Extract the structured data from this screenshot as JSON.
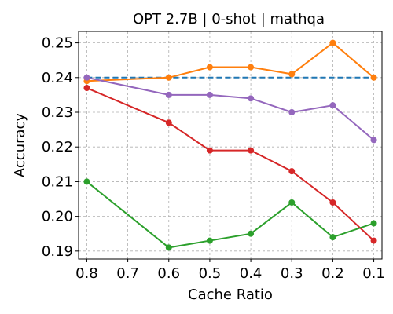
{
  "chart_data": {
    "type": "line",
    "title": "OPT 2.7B | 0-shot | mathqa",
    "xlabel": "Cache Ratio",
    "ylabel": "Accuracy",
    "x": [
      0.8,
      0.6,
      0.5,
      0.4,
      0.3,
      0.2,
      0.1
    ],
    "x_ticks": [
      "0.8",
      "0.7",
      "0.6",
      "0.5",
      "0.4",
      "0.3",
      "0.2",
      "0.1"
    ],
    "x_tick_values": [
      0.8,
      0.7,
      0.6,
      0.5,
      0.4,
      0.3,
      0.2,
      0.1
    ],
    "xlim": [
      0.82,
      0.08
    ],
    "y_ticks": [
      "0.19",
      "0.20",
      "0.21",
      "0.22",
      "0.23",
      "0.24",
      "0.25"
    ],
    "y_tick_values": [
      0.19,
      0.2,
      0.21,
      0.22,
      0.23,
      0.24,
      0.25
    ],
    "ylim": [
      0.1877,
      0.2533
    ],
    "grid": true,
    "baseline": {
      "value": 0.24,
      "color": "#1f77b4",
      "style": "dashed"
    },
    "series": [
      {
        "color": "#ff7f0e",
        "values": [
          0.239,
          0.24,
          0.243,
          0.243,
          0.241,
          0.25,
          0.24
        ]
      },
      {
        "color": "#9467bd",
        "values": [
          0.24,
          0.235,
          0.235,
          0.234,
          0.23,
          0.232,
          0.222
        ]
      },
      {
        "color": "#d62728",
        "values": [
          0.237,
          0.227,
          0.219,
          0.219,
          0.213,
          0.204,
          0.193
        ]
      },
      {
        "color": "#2ca02c",
        "values": [
          0.21,
          0.191,
          0.193,
          0.195,
          0.204,
          0.194,
          0.198
        ]
      }
    ]
  }
}
